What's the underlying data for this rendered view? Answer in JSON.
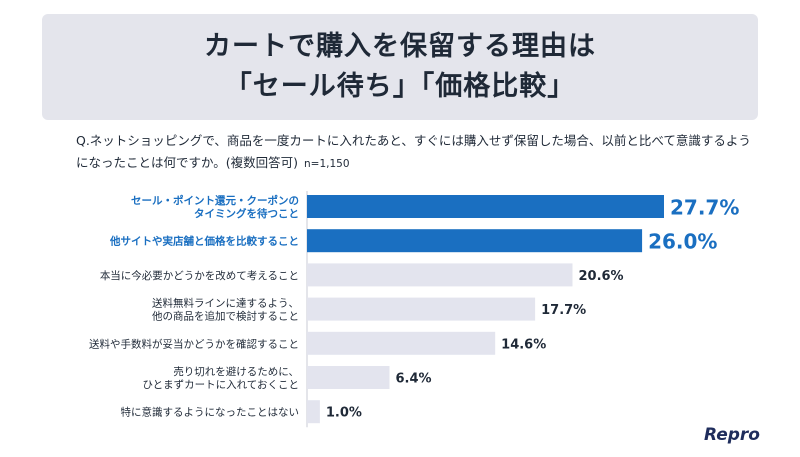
{
  "title": {
    "line1": "カートで購入を保留する理由は",
    "line2": "「セール待ち」「価格比較」"
  },
  "question": {
    "text": "Q.ネットショッピングで、商品を一度カートに入れたあと、すぐには購入せず保留した場合、以前と比べて意識するようになったことは何ですか。(複数回答可)",
    "n": "n=1,150"
  },
  "brand": "Repro",
  "colors": {
    "highlight": "#1a6fc1",
    "normal": "#e3e4ee",
    "highlight_text": "#1a6fc1",
    "normal_text": "#1f2937"
  },
  "chart_data": {
    "type": "bar",
    "orientation": "horizontal",
    "categories": [
      [
        "セール・ポイント還元・クーポンの",
        "タイミングを待つこと"
      ],
      [
        "他サイトや実店舗と価格を比較すること"
      ],
      [
        "本当に今必要かどうかを改めて考えること"
      ],
      [
        "送料無料ラインに達するよう、",
        "他の商品を追加で検討すること"
      ],
      [
        "送料や手数料が妥当かどうかを確認すること"
      ],
      [
        "売り切れを避けるために、",
        "ひとまずカートに入れておくこと"
      ],
      [
        "特に意識するようになったことはない"
      ]
    ],
    "values": [
      27.7,
      26.0,
      20.6,
      17.7,
      14.6,
      6.4,
      1.0
    ],
    "value_labels": [
      "27.7%",
      "26.0%",
      "20.6%",
      "17.7%",
      "14.6%",
      "6.4%",
      "1.0%"
    ],
    "highlight": [
      true,
      true,
      false,
      false,
      false,
      false,
      false
    ],
    "xlim": [
      0,
      27.7
    ]
  }
}
